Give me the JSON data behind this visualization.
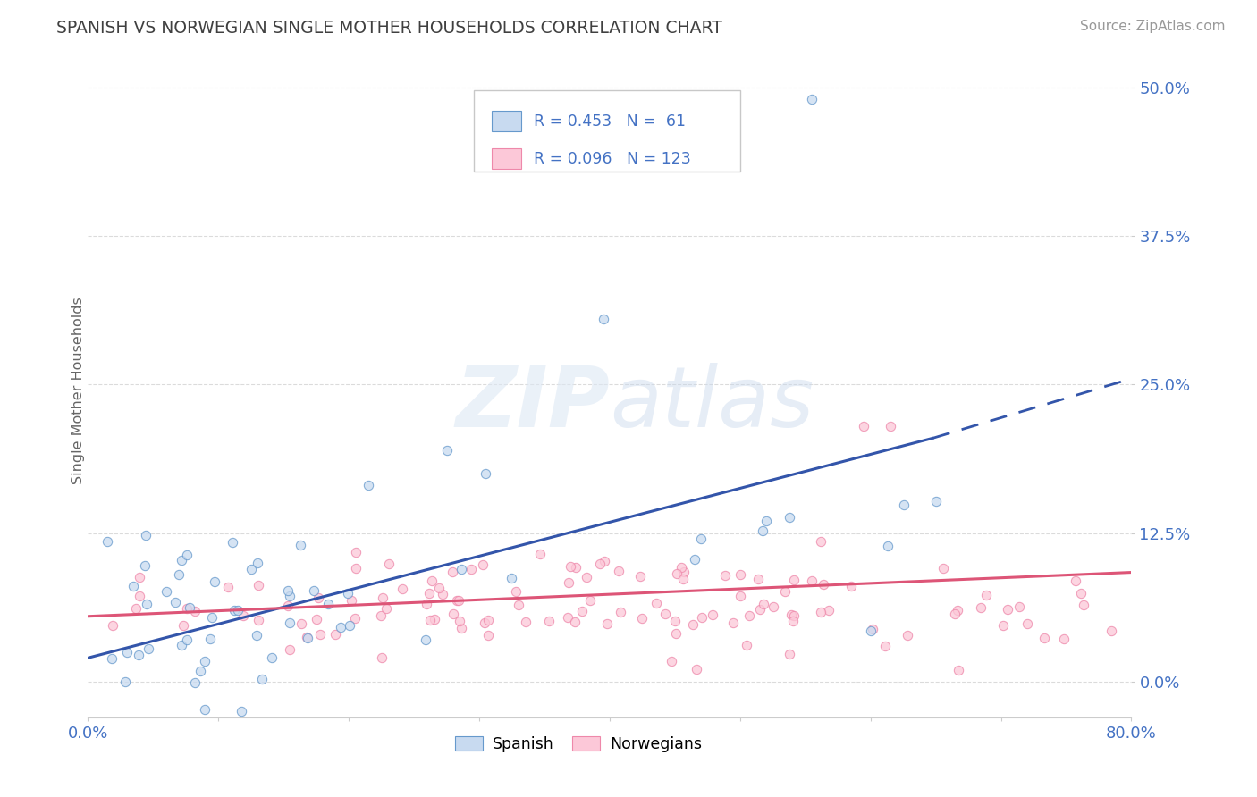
{
  "title": "SPANISH VS NORWEGIAN SINGLE MOTHER HOUSEHOLDS CORRELATION CHART",
  "source": "Source: ZipAtlas.com",
  "ylabel": "Single Mother Households",
  "xlim": [
    0.0,
    0.8
  ],
  "ylim": [
    -0.03,
    0.52
  ],
  "plot_ylim": [
    -0.03,
    0.52
  ],
  "yticks": [
    0.0,
    0.125,
    0.25,
    0.375,
    0.5
  ],
  "ytick_labels": [
    "0.0%",
    "12.5%",
    "25.0%",
    "37.5%",
    "50.0%"
  ],
  "xticks": [
    0.0,
    0.1,
    0.2,
    0.3,
    0.4,
    0.5,
    0.6,
    0.7,
    0.8
  ],
  "xtick_labels": [
    "0.0%",
    "",
    "",
    "",
    "",
    "",
    "",
    "",
    "80.0%"
  ],
  "spanish_R": 0.453,
  "spanish_N": 61,
  "norwegian_R": 0.096,
  "norwegian_N": 123,
  "spanish_edge_color": "#6699cc",
  "norwegian_edge_color": "#ee88aa",
  "spanish_face_color": "#c8daf0",
  "norwegian_face_color": "#fcc8d8",
  "spanish_line_color": "#3355aa",
  "norwegian_line_color": "#dd5577",
  "watermark_color": "#c8d8e8",
  "legend_label_spanish": "Spanish",
  "legend_label_norwegian": "Norwegians",
  "title_color": "#404040",
  "axis_label_color": "#666666",
  "tick_color": "#4472c4",
  "stat_color": "#4472c4",
  "grid_color": "#cccccc",
  "background_color": "#ffffff",
  "legend_box_color": "#f0f4ff"
}
